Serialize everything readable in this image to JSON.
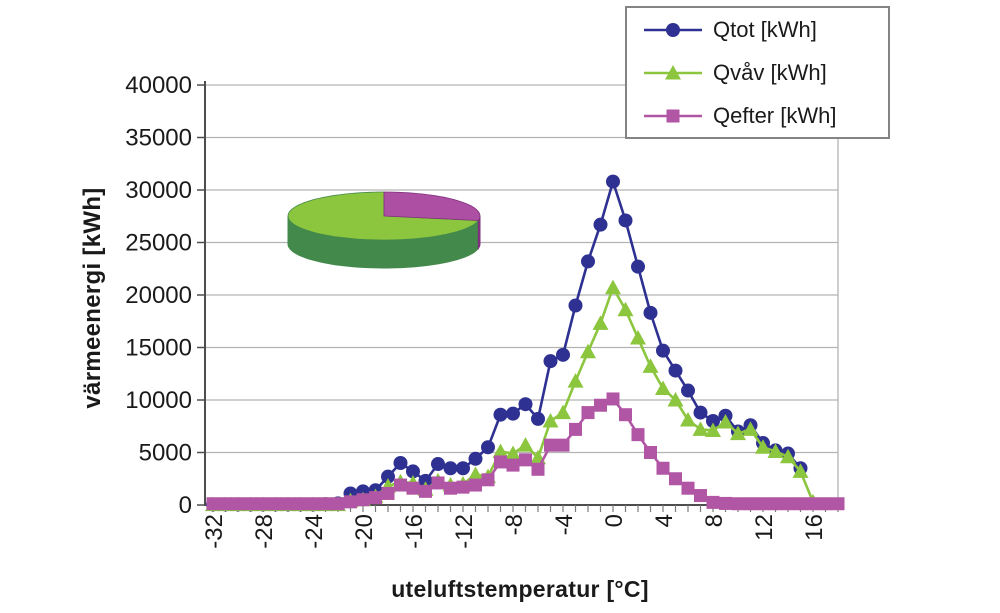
{
  "figure": {
    "background": "#ffffff",
    "text_color": "#1a1a1a",
    "grid_color": "#b3b3b3",
    "axis_color": "#4d4d4d",
    "legend_border_color": "#848484"
  },
  "chart_data": {
    "type": "line",
    "title": "",
    "xlabel": "uteluftstemperatur [°C]",
    "ylabel": "värmeenergi [kWh]",
    "xlim": [
      -33,
      18
    ],
    "ylim": [
      0,
      40000
    ],
    "grid": "horizontal",
    "legend_position": "top-right",
    "y_ticks": [
      0,
      5000,
      10000,
      15000,
      20000,
      25000,
      30000,
      35000,
      40000
    ],
    "x_tick_labels": [
      -32,
      -28,
      -24,
      -20,
      -16,
      -12,
      -8,
      -4,
      0,
      4,
      8,
      12,
      16
    ],
    "x_tick_minor_step": 1,
    "x": [
      -32,
      -31,
      -30,
      -29,
      -28,
      -27,
      -26,
      -25,
      -24,
      -23,
      -22,
      -21,
      -20,
      -19,
      -18,
      -17,
      -16,
      -15,
      -14,
      -13,
      -12,
      -11,
      -10,
      -9,
      -8,
      -7,
      -6,
      -5,
      -4,
      -3,
      -2,
      -1,
      0,
      1,
      2,
      3,
      4,
      5,
      6,
      7,
      8,
      9,
      10,
      11,
      12,
      13,
      14,
      15,
      16,
      17,
      18
    ],
    "series": [
      {
        "name": "Qtot [kWh]",
        "color": "#2e3191",
        "marker": "circle",
        "values": [
          50,
          50,
          50,
          50,
          50,
          50,
          50,
          50,
          50,
          80,
          150,
          1100,
          1300,
          1400,
          2700,
          4000,
          3200,
          2300,
          3900,
          3500,
          3500,
          4400,
          5500,
          8600,
          8700,
          9600,
          8200,
          13700,
          14300,
          19000,
          23200,
          26700,
          30800,
          27100,
          22700,
          18300,
          14700,
          12800,
          10900,
          8800,
          8000,
          8500,
          7000,
          7600,
          5900,
          5200,
          4900,
          3500,
          null,
          null,
          null
        ]
      },
      {
        "name": "Qvåv [kWh]",
        "color": "#8cc63e",
        "marker": "triangle",
        "values": [
          30,
          30,
          30,
          30,
          30,
          30,
          30,
          30,
          30,
          30,
          30,
          400,
          500,
          800,
          1800,
          2200,
          2100,
          1500,
          2300,
          1900,
          2000,
          2900,
          2700,
          5100,
          4900,
          5700,
          4500,
          8000,
          8800,
          11800,
          14600,
          17300,
          20700,
          18600,
          15900,
          13200,
          11100,
          10000,
          8100,
          7200,
          7100,
          7900,
          6800,
          7200,
          5500,
          5100,
          4600,
          3200,
          300,
          null,
          null
        ]
      },
      {
        "name": "Qefter [kWh]",
        "color": "#b156a4",
        "marker": "square",
        "values": [
          120,
          120,
          120,
          120,
          120,
          120,
          120,
          120,
          120,
          120,
          120,
          300,
          500,
          700,
          1100,
          1900,
          1600,
          1300,
          2100,
          1600,
          1700,
          1900,
          2400,
          4100,
          3800,
          4300,
          3400,
          5700,
          5700,
          7200,
          8800,
          9500,
          10100,
          8600,
          6700,
          5000,
          3500,
          2500,
          1600,
          900,
          250,
          150,
          120,
          120,
          120,
          120,
          120,
          120,
          120,
          120,
          120
        ]
      }
    ],
    "pie_inset": {
      "type": "pie",
      "start_angle_deg": 90,
      "slices": [
        {
          "name": "Qvåv",
          "percent": 72,
          "color": "#8cc63e",
          "side_color": "#44894c"
        },
        {
          "name": "Qefter",
          "percent": 28,
          "color": "#ad4fa3",
          "side_color": "#81307d"
        }
      ]
    }
  }
}
